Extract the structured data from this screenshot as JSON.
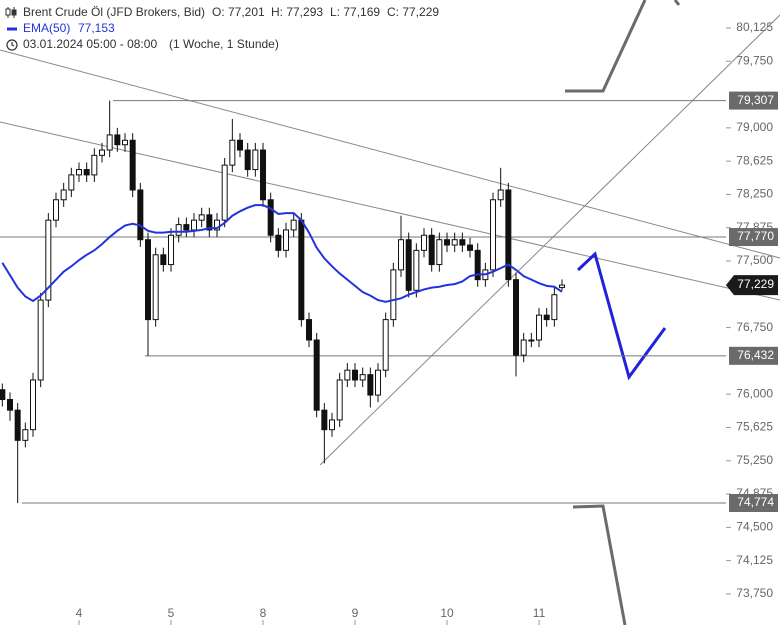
{
  "chart_data": {
    "type": "candlestick",
    "title": "Brent Crude Öl (JFD Brokers, Bid)",
    "ohlc_labels": [
      "O: 77,201",
      "H: 77,293",
      "L: 77,169",
      "C: 77,229"
    ],
    "period": "03.01.2024 05:00 - 08:00",
    "interval": "(1 Woche, 1 Stunde)",
    "categories": [
      null,
      null,
      null,
      null,
      null,
      null,
      null,
      null,
      null,
      null,
      "4",
      null,
      null,
      null,
      null,
      null,
      null,
      null,
      null,
      null,
      null,
      null,
      "5",
      null,
      null,
      null,
      null,
      null,
      null,
      null,
      null,
      null,
      null,
      null,
      "8",
      null,
      null,
      null,
      null,
      null,
      null,
      null,
      null,
      null,
      null,
      null,
      "9",
      null,
      null,
      null,
      null,
      null,
      null,
      null,
      null,
      null,
      null,
      null,
      "10",
      null,
      null,
      null,
      null,
      null,
      null,
      null,
      null,
      null,
      null,
      null,
      "11",
      null,
      null,
      null
    ],
    "open": [
      76.05,
      75.94,
      75.82,
      75.48,
      75.6,
      76.16,
      77.06,
      77.96,
      78.19,
      78.3,
      78.47,
      78.53,
      78.47,
      78.69,
      78.75,
      78.92,
      78.81,
      78.86,
      78.3,
      77.74,
      76.84,
      77.57,
      77.46,
      77.79,
      77.91,
      77.85,
      77.96,
      78.02,
      77.85,
      77.96,
      78.58,
      78.86,
      78.75,
      78.53,
      78.75,
      78.19,
      77.79,
      77.62,
      77.85,
      77.96,
      76.84,
      76.61,
      75.82,
      75.6,
      75.71,
      76.16,
      76.27,
      76.16,
      76.22,
      75.99,
      76.27,
      76.84,
      77.4,
      77.74,
      77.17,
      77.62,
      77.79,
      77.46,
      77.74,
      77.68,
      77.74,
      77.68,
      77.62,
      77.29,
      77.4,
      78.19,
      78.3,
      77.29,
      76.44,
      76.61,
      76.61,
      76.89,
      76.84,
      77.201
    ],
    "high": [
      76.12,
      76.02,
      75.9,
      75.68,
      76.24,
      77.14,
      78.04,
      78.27,
      78.38,
      78.55,
      78.61,
      78.61,
      78.77,
      78.83,
      79.307,
      79.0,
      78.94,
      78.94,
      78.38,
      77.82,
      77.65,
      77.65,
      77.87,
      77.99,
      77.99,
      78.04,
      78.1,
      78.1,
      78.04,
      78.66,
      79.1,
      78.94,
      78.83,
      78.83,
      78.83,
      78.27,
      77.87,
      77.93,
      78.04,
      78.04,
      76.92,
      76.69,
      75.9,
      75.79,
      76.24,
      76.35,
      76.35,
      76.3,
      76.3,
      76.35,
      76.92,
      77.48,
      78.01,
      77.82,
      77.7,
      77.87,
      77.87,
      77.82,
      77.82,
      77.82,
      77.82,
      77.76,
      77.7,
      77.48,
      78.27,
      78.55,
      78.38,
      77.37,
      76.69,
      76.69,
      76.97,
      76.97,
      77.2,
      77.293
    ],
    "low": [
      75.86,
      75.7,
      74.774,
      75.4,
      75.52,
      76.08,
      76.98,
      77.88,
      78.11,
      78.22,
      78.39,
      78.39,
      78.39,
      78.61,
      78.67,
      78.73,
      78.73,
      78.22,
      77.66,
      76.432,
      76.76,
      77.38,
      77.38,
      77.71,
      77.77,
      77.77,
      77.88,
      77.77,
      77.77,
      77.88,
      78.5,
      78.67,
      78.45,
      78.45,
      78.11,
      77.71,
      77.54,
      77.54,
      77.77,
      76.76,
      76.53,
      75.74,
      75.22,
      75.52,
      75.63,
      76.08,
      76.08,
      76.08,
      75.85,
      75.91,
      76.19,
      76.76,
      77.32,
      77.09,
      77.09,
      77.54,
      77.38,
      77.38,
      77.6,
      77.6,
      77.6,
      77.54,
      77.21,
      77.21,
      77.32,
      78.11,
      77.21,
      76.2,
      76.36,
      76.53,
      76.53,
      76.76,
      76.76,
      77.169
    ],
    "close": [
      75.94,
      75.82,
      75.48,
      75.6,
      76.16,
      77.06,
      77.96,
      78.19,
      78.3,
      78.47,
      78.53,
      78.47,
      78.69,
      78.75,
      78.92,
      78.81,
      78.86,
      78.3,
      77.74,
      76.84,
      77.57,
      77.46,
      77.79,
      77.91,
      77.85,
      77.96,
      78.02,
      77.85,
      77.96,
      78.58,
      78.86,
      78.75,
      78.53,
      78.75,
      78.19,
      77.79,
      77.62,
      77.85,
      77.96,
      76.84,
      76.61,
      75.82,
      75.6,
      75.71,
      76.16,
      76.27,
      76.16,
      76.22,
      75.99,
      76.27,
      76.84,
      77.4,
      77.74,
      77.17,
      77.62,
      77.79,
      77.46,
      77.74,
      77.68,
      77.74,
      77.68,
      77.62,
      77.29,
      77.4,
      78.19,
      78.3,
      77.29,
      76.44,
      76.61,
      76.61,
      76.89,
      76.84,
      77.12,
      77.229
    ],
    "series": [
      {
        "name": "EMA(50)",
        "color": "#2233dd",
        "value_label": "77,153",
        "values": [
          77.48,
          77.34,
          77.2,
          77.1,
          77.05,
          77.11,
          77.2,
          77.29,
          77.38,
          77.44,
          77.51,
          77.57,
          77.62,
          77.69,
          77.77,
          77.84,
          77.9,
          77.92,
          77.9,
          77.84,
          77.82,
          77.82,
          77.83,
          77.83,
          77.83,
          77.84,
          77.85,
          77.87,
          77.87,
          77.93,
          78.01,
          78.06,
          78.1,
          78.13,
          78.13,
          78.09,
          78.03,
          78.04,
          78.04,
          77.96,
          77.82,
          77.65,
          77.53,
          77.44,
          77.36,
          77.29,
          77.22,
          77.15,
          77.11,
          77.06,
          77.04,
          77.06,
          77.08,
          77.12,
          77.15,
          77.18,
          77.2,
          77.21,
          77.23,
          77.24,
          77.27,
          77.33,
          77.35,
          77.35,
          77.38,
          77.42,
          77.46,
          77.4,
          77.33,
          77.29,
          77.25,
          77.22,
          77.21,
          77.153
        ]
      }
    ],
    "levels": [
      {
        "value": 79.307,
        "label": "79,307"
      },
      {
        "value": 77.77,
        "label": "77,770"
      },
      {
        "value": 76.432,
        "label": "76,432"
      },
      {
        "value": 74.774,
        "label": "74,774"
      }
    ],
    "last_price": {
      "value": 77.229,
      "label": "77,229"
    },
    "ylim": [
      73.4,
      80.44
    ],
    "yticks": [
      {
        "value": 73.75,
        "label": "73,750"
      },
      {
        "value": 74.125,
        "label": "74,125"
      },
      {
        "value": 74.5,
        "label": "74,500"
      },
      {
        "value": 74.875,
        "label": "74,875"
      },
      {
        "value": 75.25,
        "label": "75,250"
      },
      {
        "value": 75.625,
        "label": "75,625"
      },
      {
        "value": 76.0,
        "label": "76,000"
      },
      {
        "value": 76.75,
        "label": "76,750"
      },
      {
        "value": 77.5,
        "label": "77,500"
      },
      {
        "value": 77.875,
        "label": "77,875"
      },
      {
        "value": 78.25,
        "label": "78,250"
      },
      {
        "value": 78.625,
        "label": "78,625"
      },
      {
        "value": 79.0,
        "label": "79,000"
      },
      {
        "value": 79.75,
        "label": "79,750"
      },
      {
        "value": 80.125,
        "label": "80,125"
      }
    ],
    "candle_color": "#111111"
  }
}
